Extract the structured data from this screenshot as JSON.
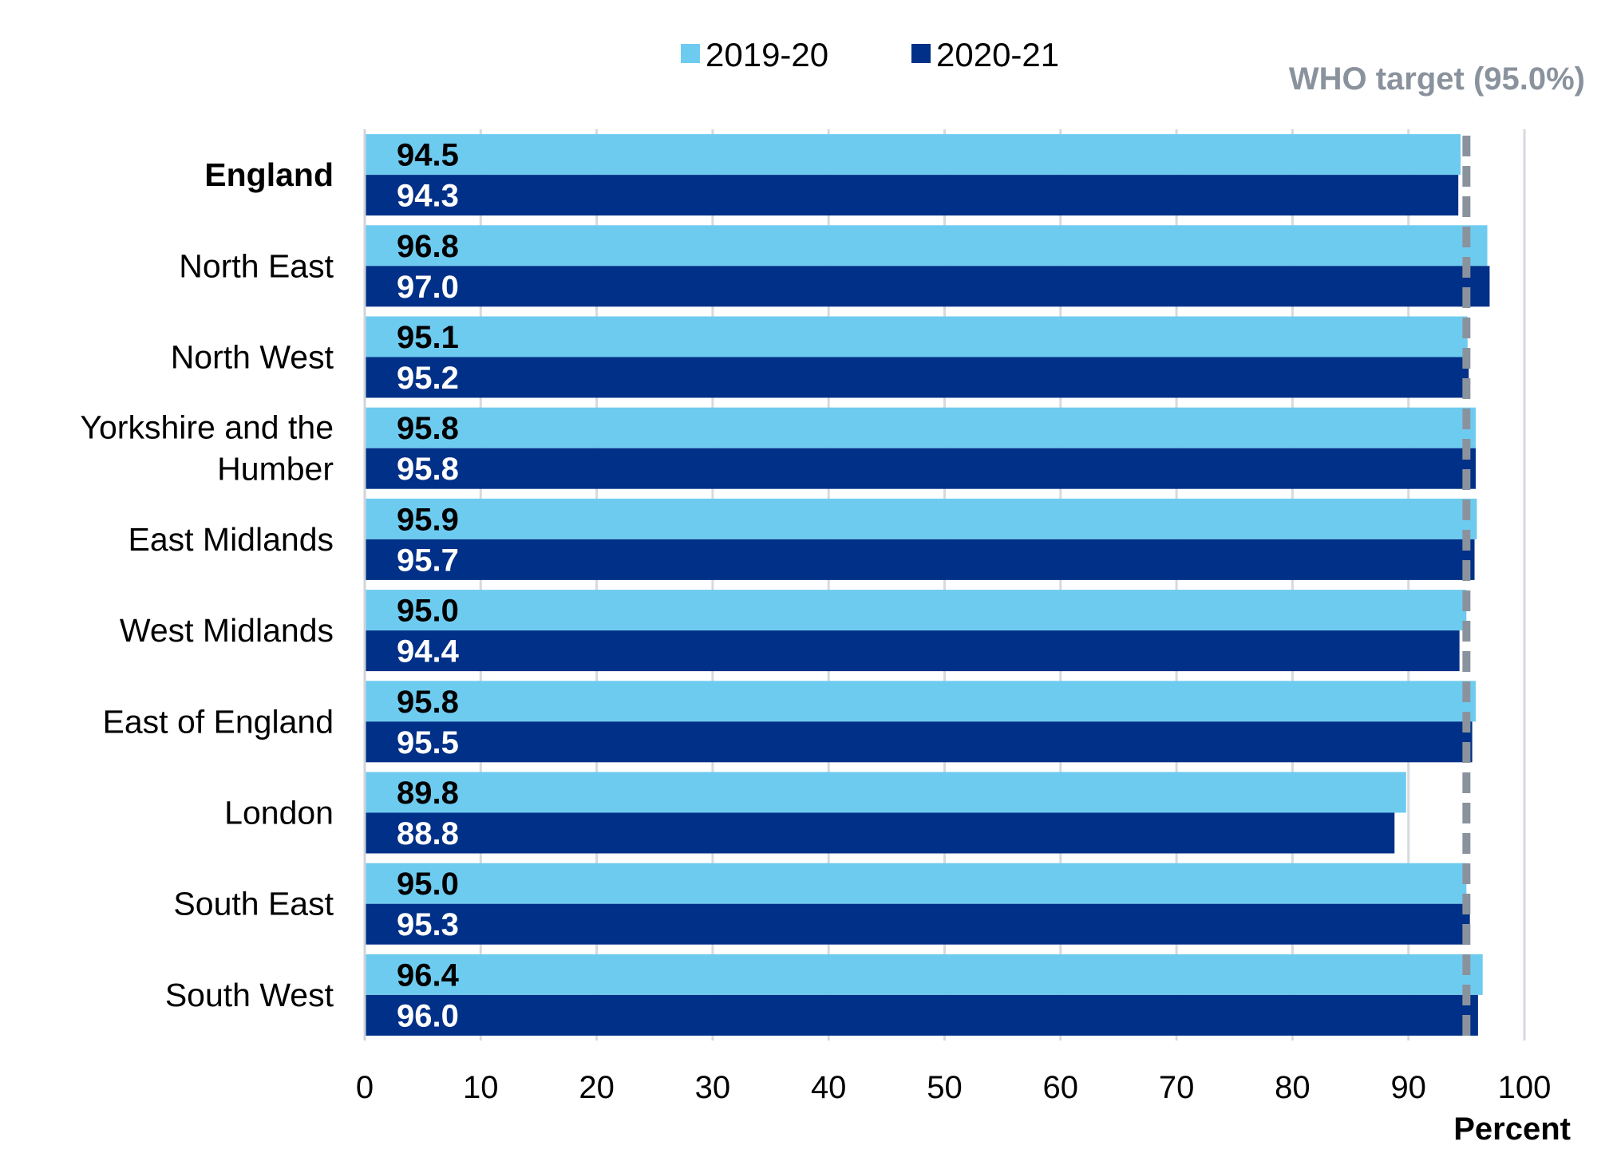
{
  "chart_data": {
    "type": "bar",
    "orientation": "horizontal",
    "categories": [
      "England",
      "North East",
      "North West",
      "Yorkshire and the Humber",
      "East Midlands",
      "West Midlands",
      "East of England",
      "London",
      "South East",
      "South West"
    ],
    "series": [
      {
        "name": "2019-20",
        "color": "#6ecbf0",
        "label_color": "#000000",
        "values": [
          94.5,
          96.8,
          95.1,
          95.8,
          95.9,
          95.0,
          95.8,
          89.8,
          95.0,
          96.4
        ]
      },
      {
        "name": "2020-21",
        "color": "#003087",
        "label_color": "#ffffff",
        "values": [
          94.3,
          97.0,
          95.2,
          95.8,
          95.7,
          94.4,
          95.5,
          88.8,
          95.3,
          96.0
        ]
      }
    ],
    "bold_categories": [
      "England"
    ],
    "xlabel": "Percent",
    "xlim": [
      0,
      100
    ],
    "xticks": [
      0,
      10,
      20,
      30,
      40,
      50,
      60,
      70,
      80,
      90,
      100
    ],
    "grid": true,
    "legend_position": "top",
    "reference_line": {
      "label": "WHO target (95.0%)",
      "value": 95.0,
      "color": "#8a939d",
      "style": "dashed"
    }
  }
}
